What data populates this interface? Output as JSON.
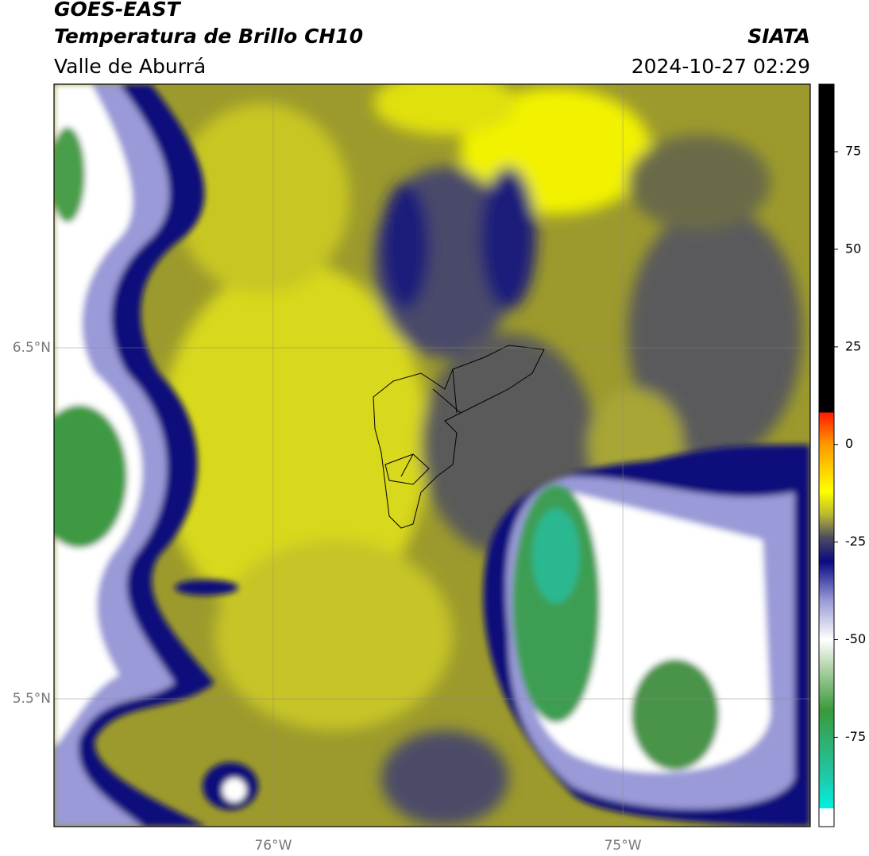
{
  "header": {
    "satellite": "GOES-EAST",
    "product": "Temperatura de Brillo CH10",
    "region": "Valle de Aburrá",
    "source": "SIATA",
    "datetime": "2024-10-27 02:29"
  },
  "map": {
    "lat_range": [
      5.136,
      7.251
    ],
    "lon_range": [
      -76.627,
      -74.464
    ],
    "lat_ticks": [
      {
        "value": 6.5,
        "label": "6.5°N"
      },
      {
        "value": 5.5,
        "label": "5.5°N"
      }
    ],
    "lon_ticks": [
      {
        "value": -76,
        "label": "76°W"
      },
      {
        "value": -75,
        "label": "75°W"
      }
    ]
  },
  "colorbar": {
    "range": [
      -97.9,
      92.3
    ],
    "ticks": [
      75,
      50,
      25,
      0,
      -25,
      -50,
      -75
    ],
    "stops": [
      {
        "value": -97.9,
        "color": "#ffffff"
      },
      {
        "value": -93.2,
        "color": "#ffffff"
      },
      {
        "value": -93.2,
        "color": "#00f0e0"
      },
      {
        "value": -85,
        "color": "#20c8a8"
      },
      {
        "value": -68,
        "color": "#3a9a3a"
      },
      {
        "value": -58,
        "color": "#a8cfa0"
      },
      {
        "value": -50,
        "color": "#ffffff"
      },
      {
        "value": -40,
        "color": "#9a9ad8"
      },
      {
        "value": -30,
        "color": "#0a0a80"
      },
      {
        "value": -24,
        "color": "#4a4a62"
      },
      {
        "value": -18,
        "color": "#b8b830"
      },
      {
        "value": -12,
        "color": "#ffff00"
      },
      {
        "value": 0,
        "color": "#ff9900"
      },
      {
        "value": 8.2,
        "color": "#ff1a00"
      },
      {
        "value": 8.2,
        "color": "#000000"
      },
      {
        "value": 92.3,
        "color": "#000000"
      }
    ]
  }
}
